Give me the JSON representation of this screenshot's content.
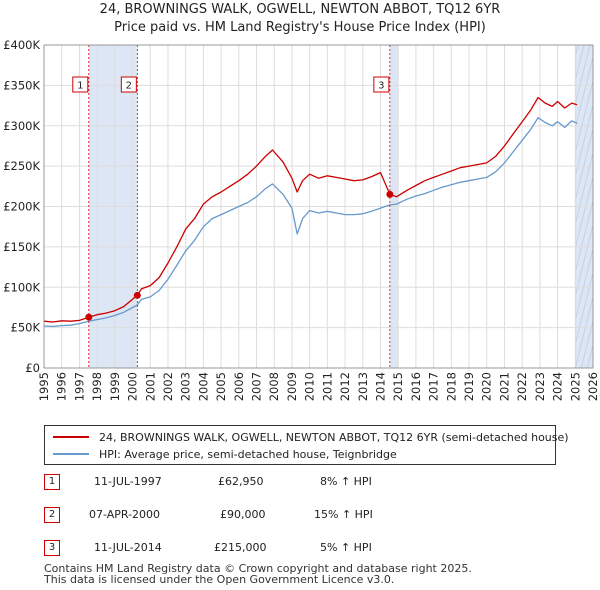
{
  "header": {
    "title_line1": "24, BROWNINGS WALK, OGWELL, NEWTON ABBOT, TQ12 6YR",
    "title_line2": "Price paid vs. HM Land Registry's House Price Index (HPI)"
  },
  "colors": {
    "price_line": "#cc0000",
    "hpi_line": "#6699cc",
    "shade": "#dde6f5",
    "grid": "#dddddd",
    "marker_border": "#cc0000"
  },
  "chart_data": {
    "type": "line",
    "title": "Price paid vs. HM Land Registry's House Price Index (HPI)",
    "xlabel": "",
    "ylabel": "",
    "xlim": [
      1995,
      2026
    ],
    "ylim": [
      0,
      400000
    ],
    "x_ticks": [
      "1995",
      "1996",
      "1997",
      "1998",
      "1999",
      "2000",
      "2001",
      "2002",
      "2003",
      "2004",
      "2005",
      "2006",
      "2007",
      "2008",
      "2009",
      "2010",
      "2011",
      "2012",
      "2013",
      "2014",
      "2015",
      "2016",
      "2017",
      "2018",
      "2019",
      "2020",
      "2021",
      "2022",
      "2023",
      "2024",
      "2025",
      "2026"
    ],
    "y_ticks": [
      {
        "value": 0,
        "label": "£0"
      },
      {
        "value": 50000,
        "label": "£50K"
      },
      {
        "value": 100000,
        "label": "£100K"
      },
      {
        "value": 150000,
        "label": "£150K"
      },
      {
        "value": 200000,
        "label": "£200K"
      },
      {
        "value": 250000,
        "label": "£250K"
      },
      {
        "value": 300000,
        "label": "£300K"
      },
      {
        "value": 350000,
        "label": "£350K"
      },
      {
        "value": 400000,
        "label": "£400K"
      }
    ],
    "shaded_periods": [
      {
        "from": 1997.53,
        "to": 2000.27
      },
      {
        "from": 2014.53,
        "to": 2015.0
      },
      {
        "from": 2025.0,
        "to": 2026.0
      }
    ],
    "series": [
      {
        "name": "24, BROWNINGS WALK, OGWELL, NEWTON ABBOT, TQ12 6YR (semi-detached house)",
        "color": "#cc0000",
        "x": [
          1995.0,
          1995.5,
          1996.0,
          1996.5,
          1997.0,
          1997.53,
          1998.0,
          1998.5,
          1999.0,
          1999.5,
          2000.27,
          2000.5,
          2001.0,
          2001.5,
          2002.0,
          2002.5,
          2003.0,
          2003.5,
          2004.0,
          2004.5,
          2005.0,
          2005.5,
          2006.0,
          2006.5,
          2007.0,
          2007.5,
          2007.9,
          2008.5,
          2009.0,
          2009.3,
          2009.6,
          2010.0,
          2010.5,
          2011.0,
          2011.5,
          2012.0,
          2012.5,
          2013.0,
          2013.5,
          2014.0,
          2014.53,
          2014.9,
          2015.5,
          2016.0,
          2016.5,
          2017.0,
          2017.5,
          2018.0,
          2018.5,
          2019.0,
          2019.5,
          2020.0,
          2020.5,
          2021.0,
          2021.5,
          2022.0,
          2022.5,
          2022.9,
          2023.3,
          2023.7,
          2024.0,
          2024.4,
          2024.8,
          2025.1
        ],
        "values": [
          58000,
          57000,
          58500,
          58000,
          59000,
          62950,
          66000,
          68000,
          71000,
          76000,
          90000,
          98000,
          102000,
          112000,
          130000,
          150000,
          172000,
          185000,
          203000,
          212000,
          218000,
          225000,
          232000,
          240000,
          250000,
          262000,
          270000,
          255000,
          235000,
          218000,
          232000,
          240000,
          235000,
          238000,
          236000,
          234000,
          232000,
          233000,
          237000,
          242000,
          215000,
          212000,
          220000,
          226000,
          232000,
          236000,
          240000,
          244000,
          248000,
          250000,
          252000,
          254000,
          262000,
          275000,
          290000,
          305000,
          320000,
          335000,
          328000,
          324000,
          330000,
          322000,
          328000,
          326000
        ]
      },
      {
        "name": "HPI: Average price, semi-detached house, Teignbridge",
        "color": "#6699cc",
        "x": [
          1995.0,
          1995.5,
          1996.0,
          1996.5,
          1997.0,
          1997.53,
          1998.0,
          1998.5,
          1999.0,
          1999.5,
          2000.27,
          2000.5,
          2001.0,
          2001.5,
          2002.0,
          2002.5,
          2003.0,
          2003.5,
          2004.0,
          2004.5,
          2005.0,
          2005.5,
          2006.0,
          2006.5,
          2007.0,
          2007.5,
          2007.9,
          2008.5,
          2009.0,
          2009.3,
          2009.6,
          2010.0,
          2010.5,
          2011.0,
          2011.5,
          2012.0,
          2012.5,
          2013.0,
          2013.5,
          2014.0,
          2014.53,
          2014.9,
          2015.5,
          2016.0,
          2016.5,
          2017.0,
          2017.5,
          2018.0,
          2018.5,
          2019.0,
          2019.5,
          2020.0,
          2020.5,
          2021.0,
          2021.5,
          2022.0,
          2022.5,
          2022.9,
          2023.3,
          2023.7,
          2024.0,
          2024.4,
          2024.8,
          2025.1
        ],
        "values": [
          52000,
          51500,
          52500,
          53000,
          55000,
          58000,
          60000,
          62000,
          65000,
          69000,
          78000,
          85000,
          88000,
          96000,
          110000,
          127000,
          145000,
          158000,
          175000,
          185000,
          190000,
          195000,
          200000,
          205000,
          212000,
          222000,
          228000,
          215000,
          198000,
          166000,
          185000,
          195000,
          192000,
          194000,
          192000,
          190000,
          190000,
          191000,
          194000,
          198000,
          202000,
          203000,
          209000,
          213000,
          216000,
          220000,
          224000,
          227000,
          230000,
          232000,
          234000,
          236000,
          243000,
          254000,
          268000,
          282000,
          296000,
          310000,
          304000,
          300000,
          305000,
          298000,
          306000,
          303000
        ]
      }
    ],
    "sale_markers": [
      {
        "label": "1",
        "x": 1997.53,
        "value": 62950
      },
      {
        "label": "2",
        "x": 2000.27,
        "value": 90000
      },
      {
        "label": "3",
        "x": 2014.53,
        "value": 215000
      }
    ]
  },
  "legend": {
    "price_label": "24, BROWNINGS WALK, OGWELL, NEWTON ABBOT, TQ12 6YR (semi-detached house)",
    "hpi_label": "HPI: Average price, semi-detached house, Teignbridge"
  },
  "sales": [
    {
      "num": "1",
      "date": "11-JUL-1997",
      "price": "£62,950",
      "hpi": "8% ↑ HPI"
    },
    {
      "num": "2",
      "date": "07-APR-2000",
      "price": "£90,000",
      "hpi": "15% ↑ HPI"
    },
    {
      "num": "3",
      "date": "11-JUL-2014",
      "price": "£215,000",
      "hpi": "5% ↑ HPI"
    }
  ],
  "footer": {
    "line1": "Contains HM Land Registry data © Crown copyright and database right 2025.",
    "line2": "This data is licensed under the Open Government Licence v3.0."
  }
}
